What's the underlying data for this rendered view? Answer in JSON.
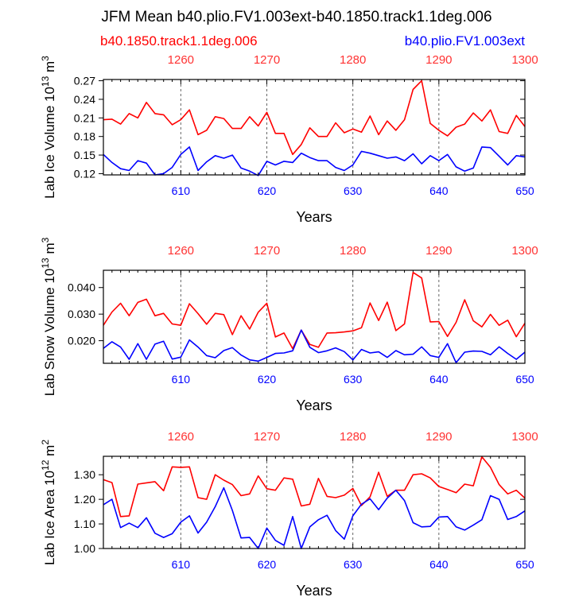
{
  "header": {
    "title": "JFM Mean b40.plio.FV1.003ext-b40.1850.track1.1deg.006",
    "legend_left": "b40.1850.track1.1deg.006",
    "legend_right": "b40.plio.FV1.003ext"
  },
  "colors": {
    "red_series": "#ff0000",
    "blue_series": "#0000ff",
    "top_tick_label": "#ff3333",
    "frame": "#000000",
    "grid": "#666666"
  },
  "chart_data": [
    {
      "type": "line",
      "title": "JFM Mean b40.plio.FV1.003ext-b40.1850.track1.1deg.006",
      "xlabel": "Years",
      "ylabel_base": "Lab Ice Volume 10",
      "ylabel_exp": "13",
      "ylabel_unit": " m",
      "ylabel_unit_exp": "3",
      "xlim": [
        601,
        650
      ],
      "ylim": [
        0.118,
        0.272
      ],
      "y_ticks": [
        0.12,
        0.15,
        0.18,
        0.21,
        0.24,
        0.27
      ],
      "y_tick_labels": [
        "0.12",
        "0.15",
        "0.18",
        "0.21",
        "0.24",
        "0.27"
      ],
      "bottom_ticks": [
        610,
        620,
        630,
        640,
        650
      ],
      "bottom_tick_labels": [
        "610",
        "620",
        "630",
        "640",
        "650"
      ],
      "top_ticks": [
        610,
        620,
        630,
        640,
        650
      ],
      "top_tick_labels": [
        "1260",
        "1270",
        "1280",
        "1290",
        "1300"
      ],
      "x": [
        601,
        602,
        603,
        604,
        605,
        606,
        607,
        608,
        609,
        610,
        611,
        612,
        613,
        614,
        615,
        616,
        617,
        618,
        619,
        620,
        621,
        622,
        623,
        624,
        625,
        626,
        627,
        628,
        629,
        630,
        631,
        632,
        633,
        634,
        635,
        636,
        637,
        638,
        639,
        640,
        641,
        642,
        643,
        644,
        645,
        646,
        647,
        648,
        649,
        650
      ],
      "series": [
        {
          "name": "b40.1850.track1.1deg.006",
          "color": "#ff0000",
          "values": [
            0.207,
            0.208,
            0.2,
            0.217,
            0.21,
            0.235,
            0.217,
            0.215,
            0.199,
            0.207,
            0.223,
            0.183,
            0.19,
            0.212,
            0.209,
            0.193,
            0.193,
            0.212,
            0.197,
            0.219,
            0.185,
            0.185,
            0.151,
            0.167,
            0.194,
            0.18,
            0.18,
            0.202,
            0.186,
            0.192,
            0.187,
            0.213,
            0.183,
            0.205,
            0.19,
            0.207,
            0.256,
            0.27,
            0.201,
            0.19,
            0.181,
            0.195,
            0.2,
            0.218,
            0.205,
            0.223,
            0.188,
            0.185,
            0.214,
            0.196
          ]
        },
        {
          "name": "b40.plio.FV1.003ext",
          "color": "#0000ff",
          "values": [
            0.151,
            0.138,
            0.128,
            0.125,
            0.141,
            0.137,
            0.118,
            0.12,
            0.13,
            0.151,
            0.163,
            0.125,
            0.139,
            0.149,
            0.145,
            0.15,
            0.129,
            0.124,
            0.117,
            0.14,
            0.134,
            0.14,
            0.138,
            0.153,
            0.146,
            0.141,
            0.141,
            0.13,
            0.125,
            0.134,
            0.156,
            0.153,
            0.149,
            0.145,
            0.147,
            0.141,
            0.152,
            0.136,
            0.149,
            0.141,
            0.151,
            0.131,
            0.124,
            0.129,
            0.163,
            0.162,
            0.148,
            0.134,
            0.149,
            0.147
          ]
        }
      ]
    },
    {
      "type": "line",
      "xlabel": "Years",
      "ylabel_base": "Lab Snow Volume 10",
      "ylabel_exp": "13",
      "ylabel_unit": " m",
      "ylabel_unit_exp": "3",
      "xlim": [
        601,
        650
      ],
      "ylim": [
        0.0115,
        0.0465
      ],
      "y_ticks": [
        0.02,
        0.03,
        0.04
      ],
      "y_tick_labels": [
        "0.020",
        "0.030",
        "0.040"
      ],
      "bottom_ticks": [
        610,
        620,
        630,
        640,
        650
      ],
      "bottom_tick_labels": [
        "610",
        "620",
        "630",
        "640",
        "650"
      ],
      "top_ticks": [
        610,
        620,
        630,
        640,
        650
      ],
      "top_tick_labels": [
        "1260",
        "1270",
        "1280",
        "1290",
        "1300"
      ],
      "x": [
        601,
        602,
        603,
        604,
        605,
        606,
        607,
        608,
        609,
        610,
        611,
        612,
        613,
        614,
        615,
        616,
        617,
        618,
        619,
        620,
        621,
        622,
        623,
        624,
        625,
        626,
        627,
        628,
        629,
        630,
        631,
        632,
        633,
        634,
        635,
        636,
        637,
        638,
        639,
        640,
        641,
        642,
        643,
        644,
        645,
        646,
        647,
        648,
        649,
        650
      ],
      "series": [
        {
          "name": "b40.1850.track1.1deg.006",
          "color": "#ff0000",
          "values": [
            0.0258,
            0.0308,
            0.0341,
            0.0294,
            0.0344,
            0.0356,
            0.0294,
            0.0303,
            0.0263,
            0.0258,
            0.0339,
            0.0302,
            0.0262,
            0.0303,
            0.0298,
            0.0223,
            0.0294,
            0.0244,
            0.0307,
            0.0341,
            0.0214,
            0.0229,
            0.017,
            0.024,
            0.0186,
            0.0175,
            0.0229,
            0.023,
            0.0233,
            0.0237,
            0.0249,
            0.0342,
            0.0276,
            0.0345,
            0.0238,
            0.0263,
            0.0457,
            0.0436,
            0.0271,
            0.0272,
            0.0216,
            0.0269,
            0.0354,
            0.0275,
            0.0252,
            0.0299,
            0.0258,
            0.0277,
            0.0215,
            0.0266
          ]
        },
        {
          "name": "b40.plio.FV1.003ext",
          "color": "#0000ff",
          "values": [
            0.0171,
            0.0196,
            0.0176,
            0.013,
            0.0189,
            0.013,
            0.0187,
            0.0198,
            0.0131,
            0.0138,
            0.0203,
            0.0176,
            0.0144,
            0.0136,
            0.0163,
            0.0174,
            0.0146,
            0.0128,
            0.0123,
            0.0137,
            0.0152,
            0.0154,
            0.0162,
            0.024,
            0.0175,
            0.0155,
            0.0162,
            0.0173,
            0.0159,
            0.0128,
            0.0167,
            0.0154,
            0.0158,
            0.0137,
            0.0163,
            0.0147,
            0.0149,
            0.0177,
            0.0144,
            0.0137,
            0.0189,
            0.0117,
            0.0157,
            0.0161,
            0.016,
            0.0147,
            0.0177,
            0.0152,
            0.013,
            0.0157
          ]
        }
      ]
    },
    {
      "type": "line",
      "xlabel": "Years",
      "ylabel_base": "Lab Ice Area 10",
      "ylabel_exp": "12",
      "ylabel_unit": " m",
      "ylabel_unit_exp": "2",
      "xlim": [
        601,
        650
      ],
      "ylim": [
        1.0,
        1.375
      ],
      "y_ticks": [
        1.0,
        1.1,
        1.2,
        1.3
      ],
      "y_tick_labels": [
        "1.00",
        "1.10",
        "1.20",
        "1.30"
      ],
      "bottom_ticks": [
        610,
        620,
        630,
        640,
        650
      ],
      "bottom_tick_labels": [
        "610",
        "620",
        "630",
        "640",
        "650"
      ],
      "top_ticks": [
        610,
        620,
        630,
        640,
        650
      ],
      "top_tick_labels": [
        "1260",
        "1270",
        "1280",
        "1290",
        "1300"
      ],
      "x": [
        601,
        602,
        603,
        604,
        605,
        606,
        607,
        608,
        609,
        610,
        611,
        612,
        613,
        614,
        615,
        616,
        617,
        618,
        619,
        620,
        621,
        622,
        623,
        624,
        625,
        626,
        627,
        628,
        629,
        630,
        631,
        632,
        633,
        634,
        635,
        636,
        637,
        638,
        639,
        640,
        641,
        642,
        643,
        644,
        645,
        646,
        647,
        648,
        649,
        650
      ],
      "series": [
        {
          "name": "b40.1850.track1.1deg.006",
          "color": "#ff0000",
          "values": [
            1.28,
            1.268,
            1.13,
            1.133,
            1.262,
            1.267,
            1.272,
            1.235,
            1.332,
            1.33,
            1.332,
            1.207,
            1.2,
            1.3,
            1.278,
            1.26,
            1.215,
            1.222,
            1.295,
            1.243,
            1.237,
            1.287,
            1.282,
            1.173,
            1.18,
            1.285,
            1.212,
            1.207,
            1.217,
            1.244,
            1.175,
            1.21,
            1.31,
            1.212,
            1.237,
            1.237,
            1.3,
            1.304,
            1.287,
            1.252,
            1.24,
            1.227,
            1.262,
            1.255,
            1.373,
            1.33,
            1.26,
            1.222,
            1.237,
            1.205
          ]
        },
        {
          "name": "b40.plio.FV1.003ext",
          "color": "#0000ff",
          "values": [
            1.178,
            1.2,
            1.085,
            1.103,
            1.085,
            1.125,
            1.062,
            1.045,
            1.06,
            1.107,
            1.133,
            1.063,
            1.107,
            1.17,
            1.247,
            1.155,
            1.043,
            1.045,
            1.0,
            1.083,
            1.033,
            1.013,
            1.13,
            1.0,
            1.088,
            1.117,
            1.135,
            1.073,
            1.038,
            1.133,
            1.18,
            1.202,
            1.158,
            1.205,
            1.237,
            1.195,
            1.105,
            1.088,
            1.09,
            1.128,
            1.13,
            1.088,
            1.075,
            1.095,
            1.117,
            1.215,
            1.2,
            1.118,
            1.13,
            1.153
          ]
        }
      ]
    }
  ]
}
